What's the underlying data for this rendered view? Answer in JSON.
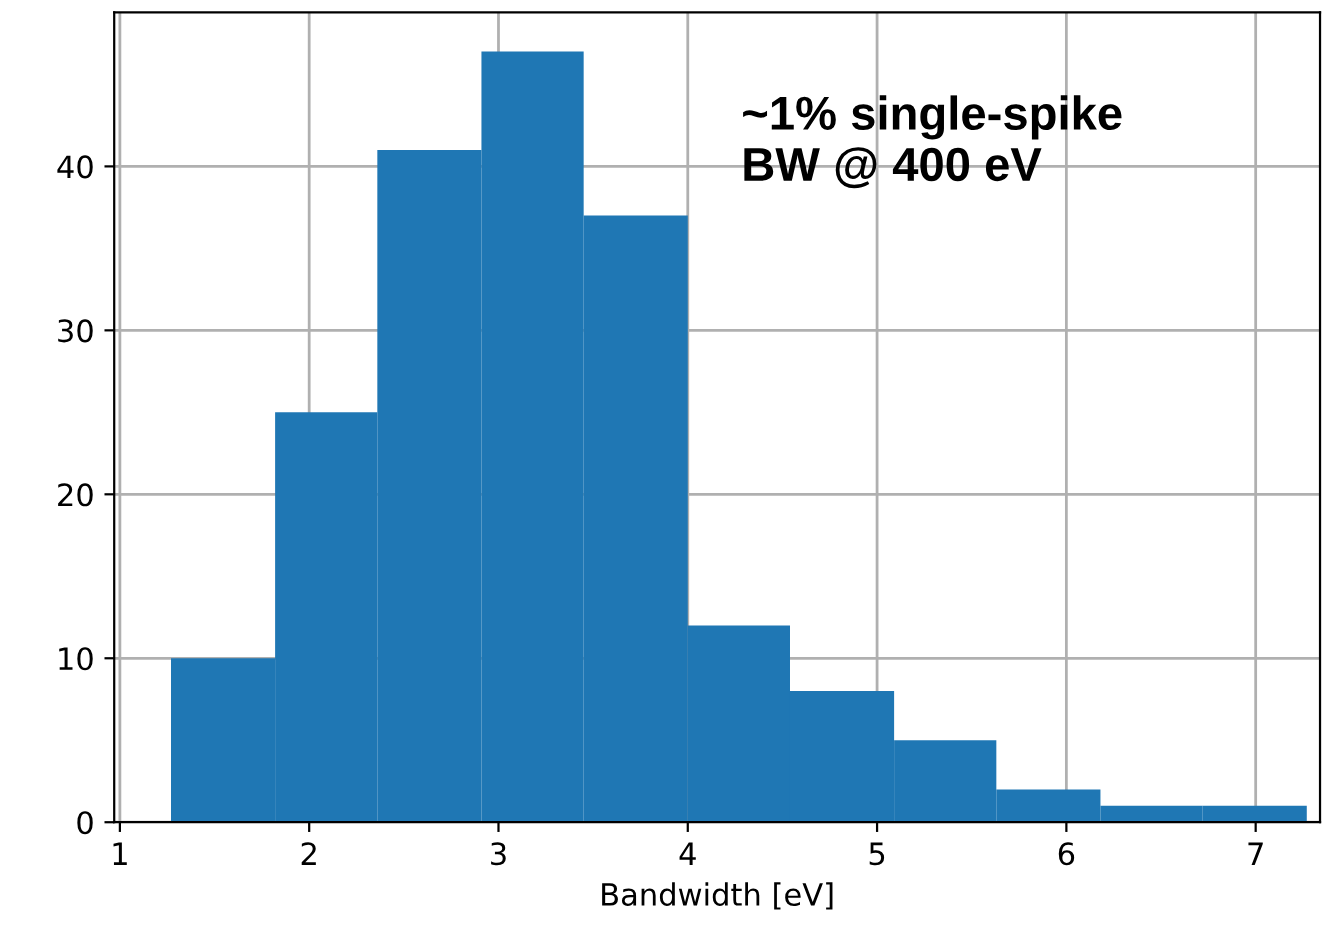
{
  "chart_data": {
    "type": "histogram",
    "xlabel": "Bandwidth [eV]",
    "bins": [
      1.27,
      1.82,
      2.36,
      2.91,
      3.45,
      4.0,
      4.54,
      5.09,
      5.63,
      6.18,
      6.72,
      7.27
    ],
    "values": [
      10,
      25,
      41,
      47,
      37,
      12,
      8,
      5,
      2,
      1,
      1
    ],
    "color": "#1f77b4",
    "xlim": [
      0.97,
      7.34
    ],
    "ylim": [
      0,
      49.4
    ],
    "xticks": [
      1,
      2,
      3,
      4,
      5,
      6,
      7
    ],
    "yticks": [
      0,
      10,
      20,
      30,
      40
    ],
    "grid": true,
    "annotations": [
      "~1% single-spike\nBW @ 400 eV"
    ]
  }
}
